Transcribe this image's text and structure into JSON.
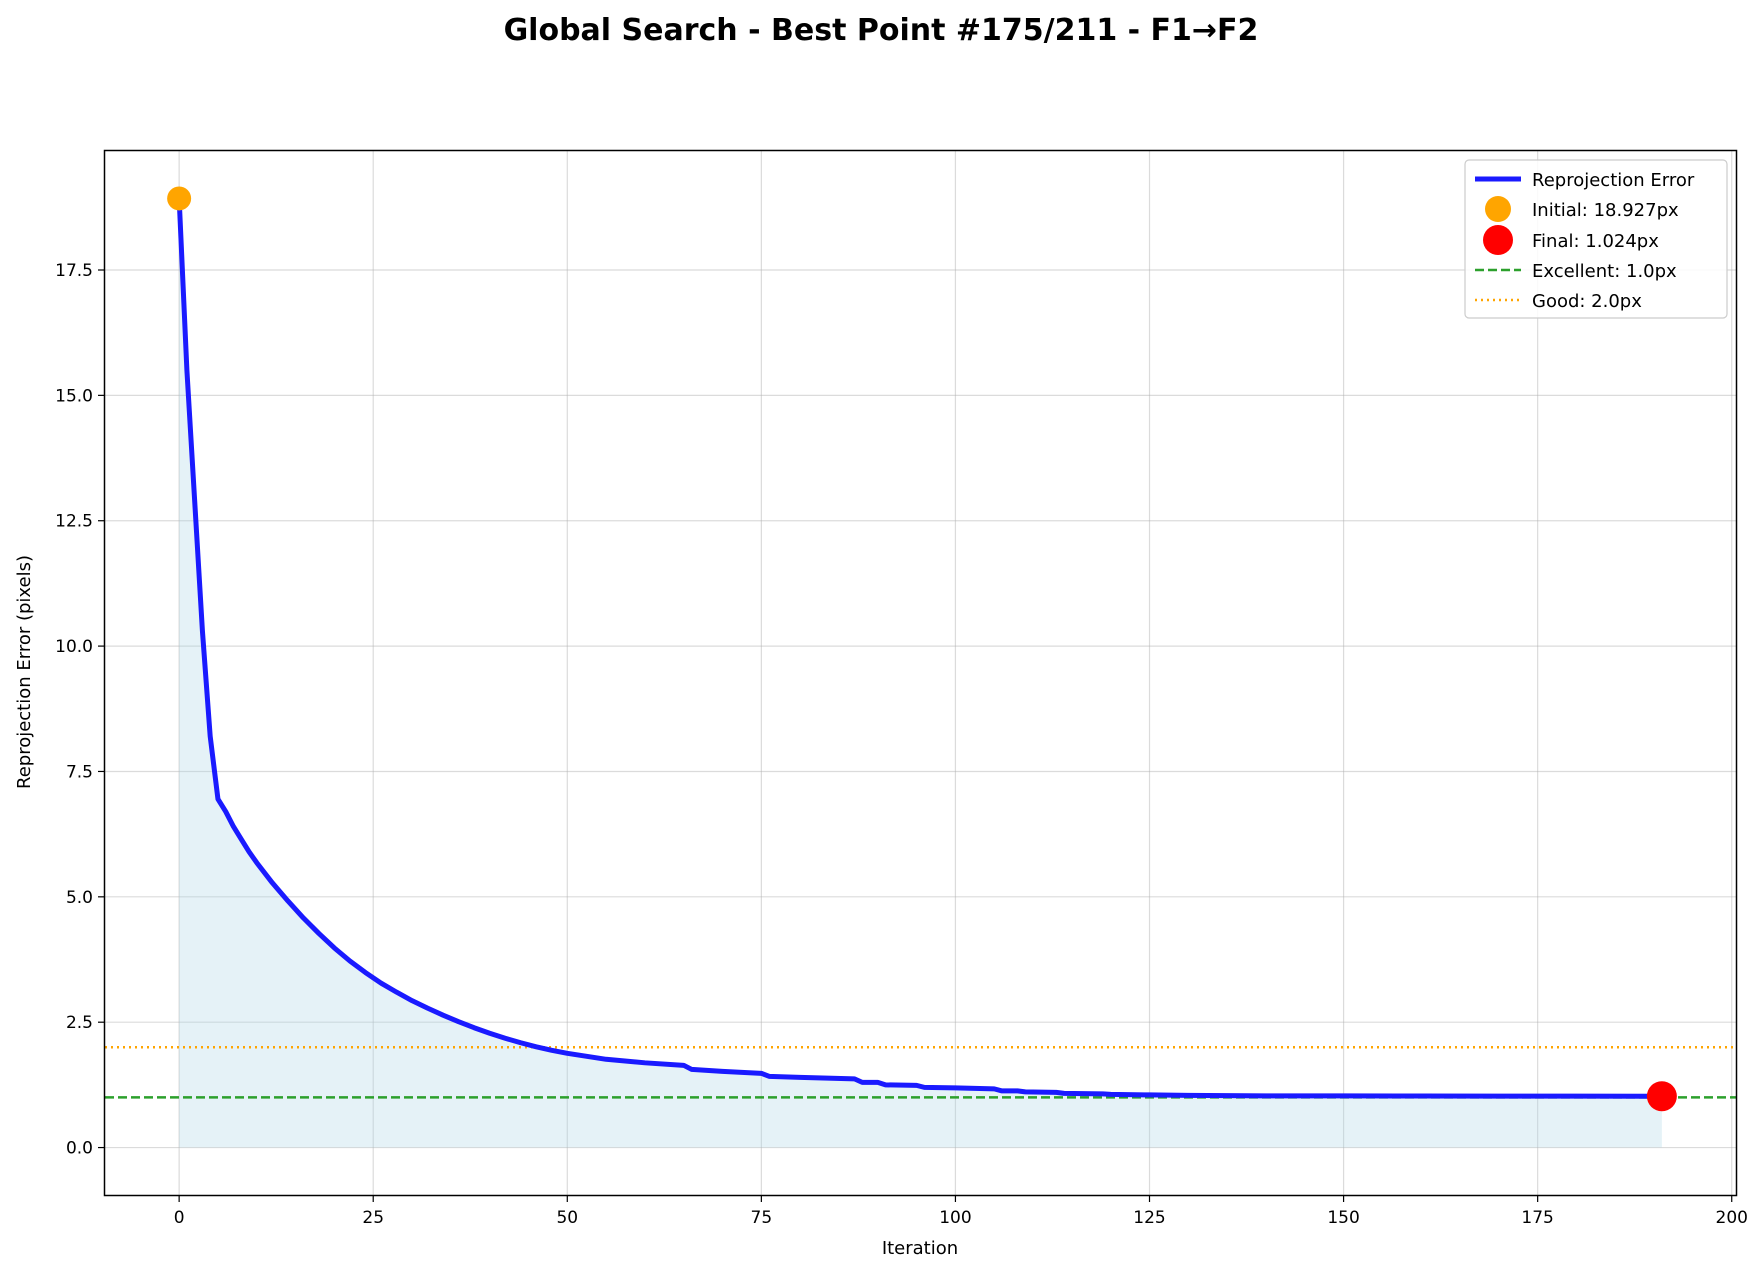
{
  "chart_data": {
    "type": "line",
    "title": "Global Search - Best Point #175/211 - F1→F2",
    "xlabel": "Iteration",
    "ylabel": "Reprojection Error (pixels)",
    "xlim": [
      -9.55,
      200.55
    ],
    "ylim": [
      -0.946,
      19.873
    ],
    "x_ticks": [
      "0",
      "25",
      "50",
      "75",
      "100",
      "125",
      "150",
      "175",
      "200"
    ],
    "x_tick_values": [
      0,
      25,
      50,
      75,
      100,
      125,
      150,
      175,
      200
    ],
    "y_ticks": [
      "0.0",
      "2.5",
      "5.0",
      "7.5",
      "10.0",
      "12.5",
      "15.0",
      "17.5"
    ],
    "y_tick_values": [
      0,
      2.5,
      5,
      7.5,
      10,
      12.5,
      15,
      17.5
    ],
    "grid": true,
    "legend_position": "top-right",
    "series": [
      {
        "name": "Reprojection Error",
        "color": "#1a1aff",
        "fill_color": "#add8e6",
        "x": [
          0,
          1,
          2,
          3,
          4,
          5,
          6,
          7,
          8,
          9,
          10,
          12,
          14,
          16,
          18,
          20,
          22,
          24,
          26,
          28,
          30,
          32,
          34,
          36,
          38,
          40,
          42,
          44,
          46,
          48,
          50,
          55,
          60,
          65,
          66,
          70,
          75,
          76,
          80,
          87,
          88,
          90,
          91,
          95,
          96,
          100,
          105,
          106,
          108,
          109,
          113,
          114,
          119,
          120,
          125,
          130,
          140,
          150,
          160,
          170,
          180,
          191
        ],
        "y": [
          18.927,
          15.5,
          12.9,
          10.3,
          8.2,
          6.95,
          6.7,
          6.4,
          6.15,
          5.9,
          5.68,
          5.28,
          4.92,
          4.58,
          4.27,
          3.98,
          3.72,
          3.49,
          3.28,
          3.1,
          2.93,
          2.78,
          2.64,
          2.51,
          2.39,
          2.28,
          2.18,
          2.09,
          2.01,
          1.94,
          1.88,
          1.76,
          1.69,
          1.64,
          1.56,
          1.52,
          1.48,
          1.42,
          1.4,
          1.37,
          1.3,
          1.3,
          1.25,
          1.24,
          1.2,
          1.19,
          1.17,
          1.13,
          1.13,
          1.11,
          1.1,
          1.08,
          1.07,
          1.06,
          1.05,
          1.04,
          1.03,
          1.03,
          1.028,
          1.026,
          1.025,
          1.024
        ]
      }
    ],
    "markers": [
      {
        "name": "Initial: 18.927px",
        "x": 0,
        "y": 18.927,
        "color": "#ffa500"
      },
      {
        "name": "Final: 1.024px",
        "x": 191,
        "y": 1.024,
        "color": "#ff0000"
      }
    ],
    "reference_lines": [
      {
        "name": "Excellent: 1.0px",
        "y": 1.0,
        "color": "#2ca02c",
        "style": "dashed"
      },
      {
        "name": "Good: 2.0px",
        "y": 2.0,
        "color": "#ffa500",
        "style": "dotted"
      }
    ]
  }
}
